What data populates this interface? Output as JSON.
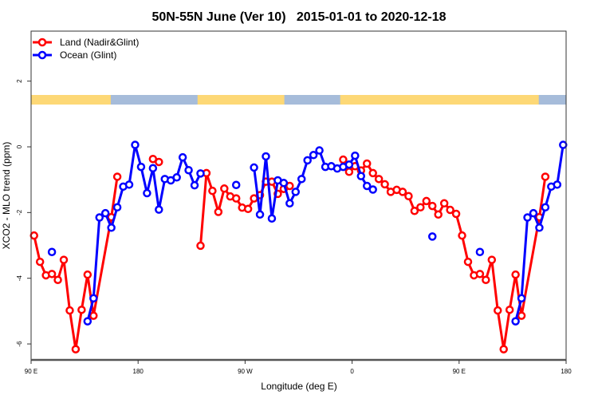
{
  "chart_data": {
    "type": "line",
    "title": "50N-55N June (Ver 10)   2015-01-01 to 2020-12-18",
    "xlabel": "Longitude (deg E)",
    "ylabel": "XCO2 - MLO trend (ppm)",
    "xlim_deg_east": [
      90,
      180,
      "wrapping through 180, 90 W, 0, 90 E to 180"
    ],
    "ylim": [
      -6.5,
      3.5
    ],
    "x_ticks": [
      "90 E",
      "180",
      "90 W",
      "0",
      "90 E",
      "180"
    ],
    "y_ticks": [
      2,
      0,
      -2,
      -4,
      -6
    ],
    "grid": false,
    "legend_placement": "top-left",
    "surface_strip": {
      "colors": {
        "land": "#fdd876",
        "ocean": "#a6bcda"
      },
      "segments": [
        {
          "type": "land",
          "from": 90,
          "to": 157
        },
        {
          "type": "ocean",
          "from": 157,
          "to": -130
        },
        {
          "type": "land",
          "from": -130,
          "to": -57
        },
        {
          "type": "ocean",
          "from": -57,
          "to": -10
        },
        {
          "type": "land",
          "from": -10,
          "to": 157
        },
        {
          "type": "ocean",
          "from": 157,
          "to": 180
        }
      ]
    },
    "series": [
      {
        "name": "Land (Nadir&Glint)",
        "color": "#ff0000",
        "runs": [
          [
            [
              92.5,
              -2.7
            ],
            [
              97.5,
              -3.5
            ],
            [
              102.5,
              -3.91
            ],
            [
              107.5,
              -3.87
            ],
            [
              112.5,
              -4.05
            ],
            [
              117.5,
              -3.44
            ],
            [
              122.5,
              -4.98
            ],
            [
              127.5,
              -6.16
            ],
            [
              132.5,
              -4.96
            ],
            [
              137.5,
              -3.89
            ],
            [
              142.5,
              -5.14
            ],
            [
              157.5,
              -2.14
            ],
            [
              162.5,
              -0.91
            ]
          ],
          [
            [
              -167.5,
              -0.37
            ],
            [
              -162.5,
              -0.46
            ]
          ],
          [
            [
              -127.5,
              -3.01
            ],
            [
              -122.5,
              -0.8
            ],
            [
              -117.5,
              -1.34
            ],
            [
              -112.5,
              -1.98
            ],
            [
              -107.5,
              -1.27
            ],
            [
              -102.5,
              -1.51
            ],
            [
              -97.5,
              -1.57
            ],
            [
              -92.5,
              -1.85
            ],
            [
              -87.5,
              -1.89
            ],
            [
              -82.5,
              -1.57
            ],
            [
              -77.5,
              -1.47
            ],
            [
              -72.5,
              -1.06
            ],
            [
              -67.5,
              -1.06
            ],
            [
              -62.5,
              -1.43
            ],
            [
              -57.5,
              -1.28
            ],
            [
              -52.5,
              -1.19
            ]
          ],
          [
            [
              -7.5,
              -0.39
            ],
            [
              -2.5,
              -0.76
            ],
            [
              2.5,
              -0.59
            ],
            [
              7.5,
              -0.72
            ],
            [
              12.5,
              -0.51
            ],
            [
              17.5,
              -0.8
            ],
            [
              22.5,
              -0.98
            ],
            [
              27.5,
              -1.14
            ],
            [
              32.5,
              -1.37
            ],
            [
              37.5,
              -1.31
            ],
            [
              42.5,
              -1.37
            ],
            [
              47.5,
              -1.5
            ],
            [
              52.5,
              -1.95
            ],
            [
              57.5,
              -1.84
            ],
            [
              62.5,
              -1.65
            ],
            [
              67.5,
              -1.8
            ],
            [
              72.5,
              -2.06
            ],
            [
              77.5,
              -1.72
            ],
            [
              82.5,
              -1.92
            ],
            [
              87.5,
              -2.04
            ],
            [
              92.5,
              -2.7
            ],
            [
              97.5,
              -3.5
            ],
            [
              102.5,
              -3.91
            ],
            [
              107.5,
              -3.87
            ],
            [
              112.5,
              -4.05
            ],
            [
              117.5,
              -3.44
            ],
            [
              122.5,
              -4.98
            ],
            [
              127.5,
              -6.16
            ],
            [
              132.5,
              -4.96
            ],
            [
              137.5,
              -3.89
            ],
            [
              142.5,
              -5.14
            ],
            [
              157.5,
              -2.14
            ],
            [
              162.5,
              -0.91
            ]
          ]
        ]
      },
      {
        "name": "Ocean (Glint)",
        "color": "#0000ff",
        "runs": [
          [
            [
              107.5,
              -3.2
            ]
          ],
          [
            [
              137.5,
              -5.31
            ],
            [
              142.5,
              -4.61
            ],
            [
              147.5,
              -2.15
            ],
            [
              152.5,
              -2.02
            ],
            [
              157.5,
              -2.46
            ],
            [
              162.5,
              -1.84
            ],
            [
              167.5,
              -1.21
            ],
            [
              172.5,
              -1.15
            ],
            [
              177.5,
              0.06
            ],
            [
              -177.5,
              -0.61
            ],
            [
              -172.5,
              -1.41
            ],
            [
              -167.5,
              -0.65
            ],
            [
              -162.5,
              -1.91
            ],
            [
              -157.5,
              -0.98
            ],
            [
              -152.5,
              -1.02
            ],
            [
              -147.5,
              -0.93
            ],
            [
              -142.5,
              -0.32
            ],
            [
              -137.5,
              -0.71
            ],
            [
              -132.5,
              -1.17
            ],
            [
              -127.5,
              -0.81
            ]
          ],
          [
            [
              -97.5,
              -1.16
            ]
          ],
          [
            [
              -82.5,
              -0.63
            ],
            [
              -77.5,
              -2.06
            ],
            [
              -72.5,
              -0.29
            ],
            [
              -67.5,
              -2.18
            ],
            [
              -62.5,
              -1.02
            ],
            [
              -57.5,
              -1.1
            ],
            [
              -52.5,
              -1.72
            ],
            [
              -47.5,
              -1.37
            ],
            [
              -42.5,
              -0.98
            ],
            [
              -37.5,
              -0.41
            ],
            [
              -32.5,
              -0.25
            ],
            [
              -27.5,
              -0.11
            ],
            [
              -22.5,
              -0.61
            ],
            [
              -17.5,
              -0.59
            ],
            [
              -12.5,
              -0.66
            ],
            [
              -7.5,
              -0.61
            ],
            [
              -2.5,
              -0.54
            ],
            [
              2.5,
              -0.27
            ],
            [
              7.5,
              -0.89
            ],
            [
              12.5,
              -1.19
            ],
            [
              17.5,
              -1.3
            ]
          ],
          [
            [
              67.5,
              -2.73
            ]
          ],
          [
            [
              107.5,
              -3.2
            ]
          ],
          [
            [
              137.5,
              -5.31
            ],
            [
              142.5,
              -4.61
            ],
            [
              147.5,
              -2.15
            ],
            [
              152.5,
              -2.02
            ],
            [
              157.5,
              -2.46
            ],
            [
              162.5,
              -1.84
            ],
            [
              167.5,
              -1.21
            ],
            [
              172.5,
              -1.15
            ],
            [
              177.5,
              0.06
            ]
          ]
        ]
      }
    ]
  }
}
